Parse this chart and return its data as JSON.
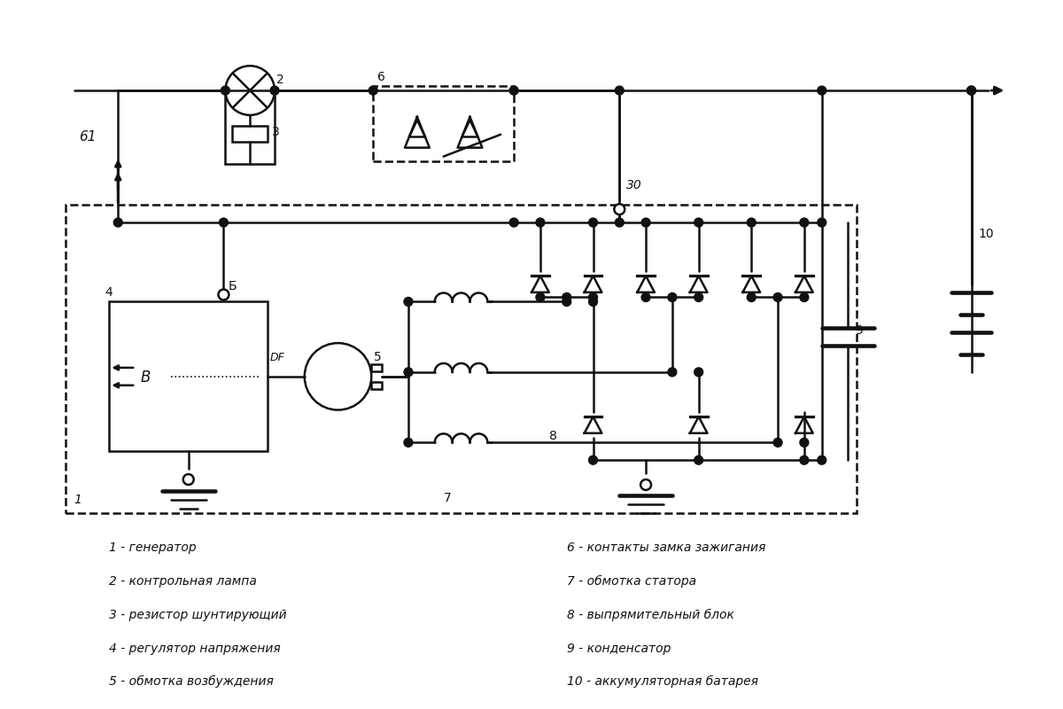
{
  "bg": "#ffffff",
  "lc": "#111111",
  "lw": 1.8,
  "legend_left": [
    "1 - генератор",
    "2 - контрольная лампа",
    "3 - резистор шунтирующий",
    "4 - регулятор напряжения",
    "5 - обмотка возбуждения"
  ],
  "legend_right": [
    "6 - контакты замка зажигания",
    "7 - обмотка статора",
    "8 - выпрямительный блок",
    "9 - конденсатор",
    "10 - аккумуляторная батарея"
  ]
}
